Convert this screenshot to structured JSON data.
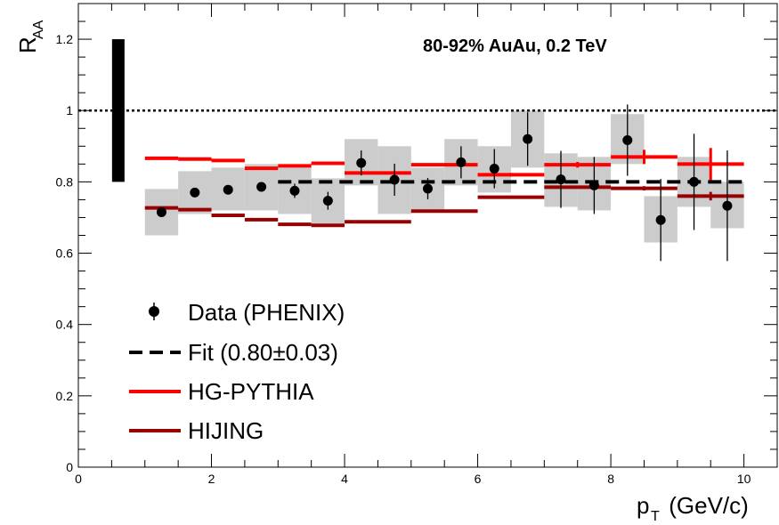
{
  "chart_data": {
    "type": "scatter",
    "annotation": "80-92% AuAu, 0.2 TeV",
    "xlabel": {
      "main": "p",
      "sub": "T",
      "unit": " (GeV/c)"
    },
    "ylabel": {
      "main": "R",
      "sub": "AA"
    },
    "xlim": [
      0,
      10.5
    ],
    "ylim": [
      0,
      1.3
    ],
    "x_ticks": [
      0,
      2,
      4,
      6,
      8,
      10
    ],
    "y_ticks": [
      0,
      0.2,
      0.4,
      0.6,
      0.8,
      1,
      1.2
    ],
    "x_tick_labels": [
      "0",
      "2",
      "4",
      "6",
      "8",
      "10"
    ],
    "y_tick_labels": [
      "0",
      "0.2",
      "0.4",
      "0.6",
      "0.8",
      "1",
      "1.2"
    ],
    "reference_line": {
      "y": 1.0,
      "style": "dotted"
    },
    "global_uncertainty_bar": {
      "x": 0.6,
      "y_low": 0.8,
      "y_high": 1.2
    },
    "colors": {
      "data": "#000000",
      "fit": "#000000",
      "hg_pythia": "#ff0000",
      "hijing": "#990000",
      "sys_box": "#cccccc"
    },
    "series": [
      {
        "name": "Data (PHENIX)",
        "kind": "points",
        "points": [
          {
            "x": 1.25,
            "y": 0.715,
            "err": 0.0,
            "sys_low": 0.65,
            "sys_high": 0.78
          },
          {
            "x": 1.75,
            "y": 0.77,
            "err": 0.0,
            "sys_low": 0.71,
            "sys_high": 0.83
          },
          {
            "x": 2.25,
            "y": 0.778,
            "err": 0.0,
            "sys_low": 0.72,
            "sys_high": 0.84
          },
          {
            "x": 2.75,
            "y": 0.786,
            "err": 0.0,
            "sys_low": 0.72,
            "sys_high": 0.85
          },
          {
            "x": 3.25,
            "y": 0.775,
            "err": 0.02,
            "sys_low": 0.71,
            "sys_high": 0.84
          },
          {
            "x": 3.75,
            "y": 0.747,
            "err": 0.025,
            "sys_low": 0.68,
            "sys_high": 0.81
          },
          {
            "x": 4.25,
            "y": 0.853,
            "err": 0.035,
            "sys_low": 0.79,
            "sys_high": 0.92
          },
          {
            "x": 4.75,
            "y": 0.806,
            "err": 0.045,
            "sys_low": 0.71,
            "sys_high": 0.9
          },
          {
            "x": 5.25,
            "y": 0.781,
            "err": 0.03,
            "sys_low": 0.72,
            "sys_high": 0.84
          },
          {
            "x": 5.75,
            "y": 0.855,
            "err": 0.045,
            "sys_low": 0.79,
            "sys_high": 0.92
          },
          {
            "x": 6.25,
            "y": 0.837,
            "err": 0.055,
            "sys_low": 0.77,
            "sys_high": 0.9
          },
          {
            "x": 6.75,
            "y": 0.92,
            "err": 0.075,
            "sys_low": 0.84,
            "sys_high": 1.0
          },
          {
            "x": 7.25,
            "y": 0.807,
            "err": 0.08,
            "sys_low": 0.73,
            "sys_high": 0.88
          },
          {
            "x": 7.75,
            "y": 0.79,
            "err": 0.08,
            "sys_low": 0.72,
            "sys_high": 0.87
          },
          {
            "x": 8.25,
            "y": 0.917,
            "err": 0.1,
            "sys_low": 0.85,
            "sys_high": 0.99
          },
          {
            "x": 8.75,
            "y": 0.693,
            "err": 0.115,
            "sys_low": 0.63,
            "sys_high": 0.76
          },
          {
            "x": 9.25,
            "y": 0.8,
            "err": 0.135,
            "sys_low": 0.73,
            "sys_high": 0.87
          },
          {
            "x": 9.75,
            "y": 0.733,
            "err": 0.155,
            "sys_low": 0.67,
            "sys_high": 0.8
          }
        ]
      },
      {
        "name": "Fit (0.80±0.03)",
        "kind": "dashed",
        "value": 0.8,
        "x_range": [
          3.0,
          10.0
        ]
      },
      {
        "name": "HG-PYTHIA",
        "kind": "steps",
        "bins": [
          {
            "x0": 1.0,
            "x1": 1.5,
            "y": 0.866,
            "err": 0
          },
          {
            "x0": 1.5,
            "x1": 2.0,
            "y": 0.864,
            "err": 0
          },
          {
            "x0": 2.0,
            "x1": 2.5,
            "y": 0.86,
            "err": 0
          },
          {
            "x0": 2.5,
            "x1": 3.0,
            "y": 0.838,
            "err": 0
          },
          {
            "x0": 3.0,
            "x1": 3.5,
            "y": 0.845,
            "err": 0
          },
          {
            "x0": 3.5,
            "x1": 4.0,
            "y": 0.852,
            "err": 0
          },
          {
            "x0": 4.0,
            "x1": 5.0,
            "y": 0.825,
            "err": 0
          },
          {
            "x0": 5.0,
            "x1": 6.0,
            "y": 0.848,
            "err": 0
          },
          {
            "x0": 6.0,
            "x1": 7.0,
            "y": 0.82,
            "err": 0.005
          },
          {
            "x0": 7.0,
            "x1": 8.0,
            "y": 0.848,
            "err": 0.008
          },
          {
            "x0": 8.0,
            "x1": 9.0,
            "y": 0.87,
            "err": 0.02
          },
          {
            "x0": 9.0,
            "x1": 10.0,
            "y": 0.85,
            "err": 0.045
          }
        ]
      },
      {
        "name": "HIJING",
        "kind": "steps",
        "bins": [
          {
            "x0": 1.0,
            "x1": 1.5,
            "y": 0.727,
            "err": 0
          },
          {
            "x0": 1.5,
            "x1": 2.0,
            "y": 0.722,
            "err": 0
          },
          {
            "x0": 2.0,
            "x1": 2.5,
            "y": 0.706,
            "err": 0
          },
          {
            "x0": 2.5,
            "x1": 3.0,
            "y": 0.694,
            "err": 0
          },
          {
            "x0": 3.0,
            "x1": 3.5,
            "y": 0.681,
            "err": 0
          },
          {
            "x0": 3.5,
            "x1": 4.0,
            "y": 0.678,
            "err": 0
          },
          {
            "x0": 4.0,
            "x1": 5.0,
            "y": 0.688,
            "err": 0
          },
          {
            "x0": 5.0,
            "x1": 6.0,
            "y": 0.718,
            "err": 0
          },
          {
            "x0": 6.0,
            "x1": 7.0,
            "y": 0.757,
            "err": 0
          },
          {
            "x0": 7.0,
            "x1": 8.0,
            "y": 0.785,
            "err": 0.004
          },
          {
            "x0": 8.0,
            "x1": 9.0,
            "y": 0.782,
            "err": 0.006
          },
          {
            "x0": 9.0,
            "x1": 10.0,
            "y": 0.76,
            "err": 0.012
          }
        ]
      }
    ],
    "legend": {
      "placement": "bottom-left",
      "entries": [
        "Data (PHENIX)",
        "Fit (0.80±0.03)",
        "HG-PYTHIA",
        "HIJING"
      ]
    }
  }
}
